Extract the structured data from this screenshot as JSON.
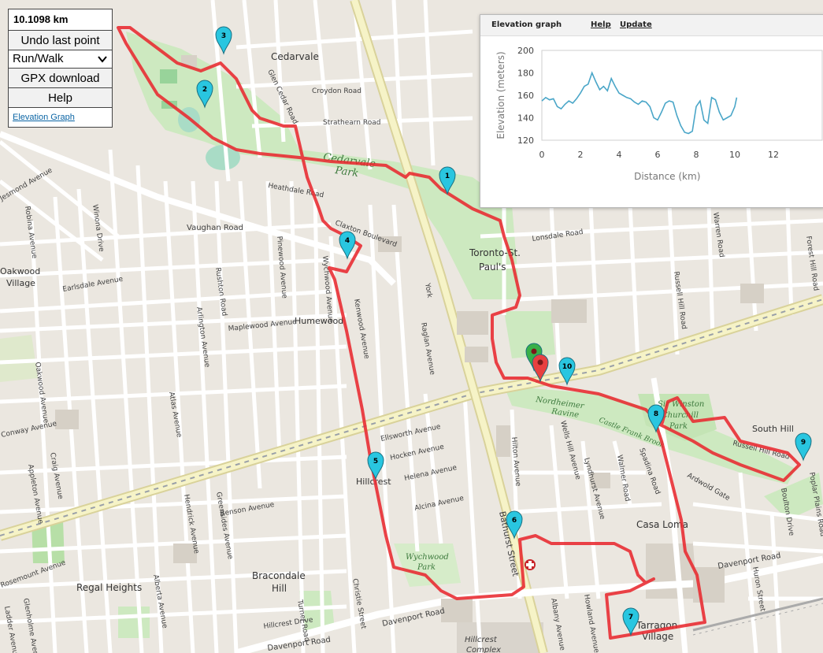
{
  "panel": {
    "distance": "10.1098 km",
    "undo_label": "Undo last point",
    "mode_selected": "Run/Walk",
    "gpx_label": "GPX download",
    "help_label": "Help",
    "elevation_link": "Elevation Graph"
  },
  "elevation_window": {
    "title": "Elevation graph",
    "help_link": "Help",
    "update_link": "Update"
  },
  "map": {
    "route_color": "#e8292f",
    "marker_color": "#29c6e0",
    "start_marker_color": "#38b048",
    "end_marker_color": "#e84040",
    "markers": [
      "1",
      "2",
      "3",
      "4",
      "5",
      "6",
      "7",
      "8",
      "9",
      "10"
    ],
    "labels": {
      "cedarvale": "Cedarvale",
      "glen_cedar_road": "Glen Cedar Road",
      "croydon_road": "Croydon Road",
      "strathearn_road": "Strathearn Road",
      "cedarvale_park_1": "Cedarvale",
      "cedarvale_park_2": "Park",
      "heathdale_road": "Heathdale Road",
      "claxton_boulevard": "Claxton Boulevard",
      "vaughan_road": "Vaughan Road",
      "toronto_st_pauls_1": "Toronto-St.",
      "toronto_st_pauls_2": "Paul's",
      "lonsdale_road": "Lonsdale Road",
      "humewood": "Humewood",
      "maplewood_avenue": "Maplewood Avenue",
      "earlsdale_avenue": "Earlsdale Avenue",
      "oakwood_village_1": "Oakwood",
      "oakwood_village_2": "Village",
      "hillcrest": "Hillcrest",
      "ellsworth_avenue": "Ellsworth Avenue",
      "hocken_avenue": "Hocken Avenue",
      "helena_avenue": "Helena Avenue",
      "alcina_avenue": "Alcina Avenue",
      "wychwood_park_1": "Wychwood",
      "wychwood_park_2": "Park",
      "bathurst_street": "Bathurst Street",
      "davenport_road": "Davenport Road",
      "davenport_road_2": "Davenport Road",
      "davenport_road_3": "Davenport Road",
      "bracondale_hill_1": "Bracondale",
      "bracondale_hill_2": "Hill",
      "regal_heights": "Regal Heights",
      "hillcrest_complex_1": "Hillcrest",
      "hillcrest_complex_2": "Complex",
      "casa_loma": "Casa Loma",
      "south_hill": "South Hill",
      "russell_hill_road": "Russell Hill Road",
      "nordheimer_ravine_1": "Nordheimer",
      "nordheimer_ravine_2": "Ravine",
      "castle_frank_brook": "Castle Frank Brook",
      "sir_winston_1": "Sir Winston",
      "sir_winston_2": "Churchill",
      "sir_winston_3": "Park",
      "spadina_road": "Spadina Road",
      "walmer_road": "Walmer Road",
      "wells_hill_avenue": "Wells Hill Avenue",
      "hilton_avenue": "Hilton Avenue",
      "lyndhurst_avenue": "Lyndhurst Avenue",
      "ardwold_gate": "Ardwold Gate",
      "poplar_plains_road": "Poplar Plains Road",
      "boulton_drive": "Boulton Drive",
      "huron_street": "Huron Street",
      "albany_avenue": "Albany Avenue",
      "howland_avenue": "Howland Avenue",
      "tarragon_village_1": "Tarragon",
      "tarragon_village_2": "Village",
      "christie_street": "Christie Street",
      "kenwood_avenue": "Kenwood Avenue",
      "wychwood_avenue": "Wychwood Avenue",
      "raglan_avenue": "Raglan Avenue",
      "pinewood_avenue": "Pinewood Avenue",
      "arlington_avenue": "Arlington Avenue",
      "rushton_road": "Rushton Road",
      "winona_drive": "Winona Drive",
      "oakwood_avenue": "Oakwood Avenue",
      "jesmond_avenue": "Jesmond Avenue",
      "robina_avenue": "Robina Avenue",
      "conway_avenue": "Conway Avenue",
      "craig_avenue": "Craig Avenue",
      "appleton_avenue": "Appleton Avenue",
      "benson_avenue": "Benson Avenue",
      "turner_road": "Turner Road",
      "hillcrest_drive": "Hillcrest Drive",
      "atlas_avenue": "Atlas Avenue",
      "hendrick_avenue": "Hendrick Avenue",
      "greensides_avenue": "Greensides Avenue",
      "alberta_avenue": "Alberta Avenue",
      "rosemount_avenue": "Rosemount Avenue",
      "glenholme_avenue": "Glenholme Avenue",
      "ladder_avenue": "Ladder Avenue",
      "warren_road": "Warren Road",
      "russell_hill_road_2": "Russell Hill Road",
      "forest_hill_road": "Forest Hill Road",
      "york": "York"
    }
  },
  "chart_data": {
    "type": "line",
    "xlabel": "Distance (km)",
    "ylabel": "Elevation (meters)",
    "xlim": [
      0,
      12
    ],
    "ylim": [
      120,
      200
    ],
    "xticks": [
      0,
      2,
      4,
      6,
      8,
      10,
      12
    ],
    "yticks": [
      120,
      140,
      160,
      180,
      200
    ],
    "x": [
      0,
      0.2,
      0.4,
      0.6,
      0.8,
      1.0,
      1.2,
      1.4,
      1.6,
      1.8,
      2.0,
      2.2,
      2.4,
      2.6,
      2.8,
      3.0,
      3.2,
      3.4,
      3.6,
      3.8,
      4.0,
      4.2,
      4.4,
      4.6,
      4.8,
      5.0,
      5.2,
      5.4,
      5.6,
      5.8,
      6.0,
      6.2,
      6.4,
      6.6,
      6.8,
      7.0,
      7.2,
      7.4,
      7.6,
      7.8,
      8.0,
      8.2,
      8.4,
      8.6,
      8.8,
      9.0,
      9.2,
      9.4,
      9.6,
      9.8,
      10.0,
      10.1
    ],
    "values": [
      155,
      158,
      156,
      157,
      150,
      148,
      152,
      155,
      153,
      157,
      162,
      168,
      170,
      180,
      172,
      165,
      168,
      164,
      175,
      168,
      162,
      160,
      158,
      157,
      154,
      152,
      155,
      154,
      150,
      140,
      138,
      145,
      153,
      155,
      154,
      142,
      133,
      127,
      126,
      128,
      150,
      155,
      138,
      135,
      158,
      156,
      145,
      138,
      140,
      142,
      150,
      158
    ],
    "line_color": "#4aa6c8",
    "grid": false
  }
}
